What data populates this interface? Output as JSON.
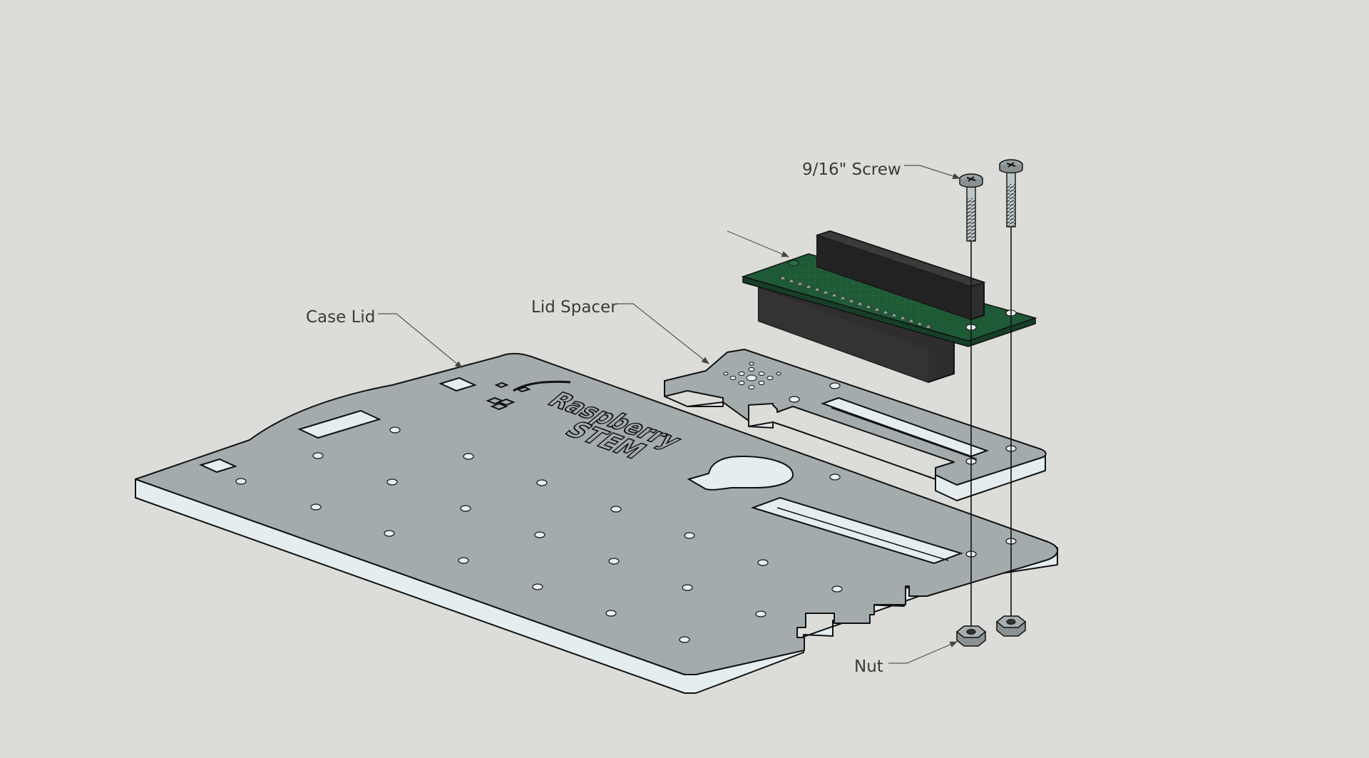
{
  "labels": {
    "screw": "9/16\" Screw",
    "lid_spacer": "Lid Spacer",
    "case_lid": "Case Lid",
    "nut": "Nut"
  },
  "engraving": {
    "line1": "Raspberry",
    "line2": "STEM"
  },
  "colors": {
    "background": "#dcdcd8",
    "acrylic_top": "#a3abad",
    "acrylic_edge": "#e4eef1",
    "pcb": "#1f5a36",
    "header": "#2e2e2e",
    "outline": "#111111"
  },
  "icons": [
    "hexagon-nut-icon",
    "phillips-screw-icon",
    "gpio-header-icon"
  ]
}
